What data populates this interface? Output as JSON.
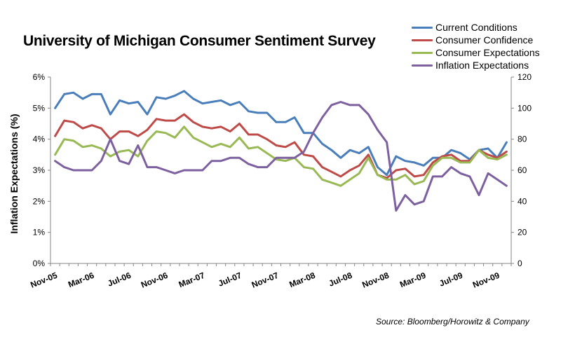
{
  "chart_data": {
    "type": "line",
    "title": "University of Michigan Consumer Sentiment Survey",
    "ylabel_left": "Inflation Expectations (%)",
    "ylabel_right": "",
    "source": "Source: Bloomberg/Horowitz & Company",
    "left_axis": {
      "min": 0,
      "max": 6,
      "ticks": [
        "0%",
        "1%",
        "2%",
        "3%",
        "4%",
        "5%",
        "6%"
      ]
    },
    "right_axis": {
      "min": 0,
      "max": 120,
      "ticks": [
        "0",
        "20",
        "40",
        "60",
        "80",
        "100",
        "120"
      ]
    },
    "x_tick_labels": [
      "Nov-05",
      "Mar-06",
      "Jul-06",
      "Nov-06",
      "Mar-07",
      "Jul-07",
      "Nov-07",
      "Mar-08",
      "Jul-08",
      "Nov-08",
      "Mar-09",
      "Jul-09",
      "Nov-09"
    ],
    "months": [
      "Nov-05",
      "Dec-05",
      "Jan-06",
      "Feb-06",
      "Mar-06",
      "Apr-06",
      "May-06",
      "Jun-06",
      "Jul-06",
      "Aug-06",
      "Sep-06",
      "Oct-06",
      "Nov-06",
      "Dec-06",
      "Jan-07",
      "Feb-07",
      "Mar-07",
      "Apr-07",
      "May-07",
      "Jun-07",
      "Jul-07",
      "Aug-07",
      "Sep-07",
      "Oct-07",
      "Nov-07",
      "Dec-07",
      "Jan-08",
      "Feb-08",
      "Mar-08",
      "Apr-08",
      "May-08",
      "Jun-08",
      "Jul-08",
      "Aug-08",
      "Sep-08",
      "Oct-08",
      "Nov-08",
      "Dec-08",
      "Jan-09",
      "Feb-09",
      "Mar-09",
      "Apr-09",
      "May-09",
      "Jun-09",
      "Jul-09",
      "Aug-09",
      "Sep-09",
      "Oct-09",
      "Nov-09",
      "Dec-09"
    ],
    "legend_position": "top-right",
    "series": [
      {
        "name": "Current Conditions",
        "axis": "right",
        "color": "#4a7ebb",
        "values": [
          100,
          109,
          110,
          106,
          109,
          109,
          96,
          105,
          103,
          104,
          96,
          107,
          106,
          108,
          111,
          106,
          103,
          104,
          105,
          102,
          104,
          98,
          97,
          97,
          91,
          91,
          94,
          84,
          84,
          77,
          73,
          68,
          73,
          71,
          75,
          62,
          57,
          69,
          66,
          65,
          63,
          68,
          68,
          73,
          71,
          67,
          73,
          74,
          68,
          78
        ]
      },
      {
        "name": "Consumer Confidence",
        "axis": "right",
        "color": "#be4b48",
        "values": [
          82,
          92,
          91,
          87,
          89,
          87,
          80,
          85,
          85,
          82,
          86,
          93,
          92,
          92,
          96,
          91,
          88,
          87,
          88,
          85,
          90,
          83,
          83,
          80,
          76,
          75,
          78,
          70,
          69,
          62,
          59,
          56,
          60,
          63,
          70,
          57,
          55,
          60,
          61,
          56,
          57,
          65,
          69,
          70,
          66,
          66,
          73,
          70,
          68,
          72
        ]
      },
      {
        "name": "Consumer Expectations",
        "axis": "right",
        "color": "#98b954",
        "values": [
          70,
          80,
          79,
          75,
          76,
          74,
          69,
          72,
          73,
          69,
          79,
          85,
          84,
          81,
          88,
          81,
          78,
          75,
          77,
          75,
          81,
          74,
          75,
          71,
          67,
          66,
          68,
          62,
          61,
          54,
          52,
          50,
          54,
          58,
          68,
          57,
          54,
          54,
          57,
          51,
          53,
          63,
          68,
          68,
          65,
          65,
          73,
          68,
          67,
          70
        ]
      },
      {
        "name": "Inflation Expectations",
        "axis": "left",
        "color": "#7d60a0",
        "values": [
          3.3,
          3.1,
          3.0,
          3.0,
          3.0,
          3.3,
          4.0,
          3.3,
          3.2,
          3.8,
          3.1,
          3.1,
          3.0,
          2.9,
          3.0,
          3.0,
          3.0,
          3.3,
          3.3,
          3.4,
          3.4,
          3.2,
          3.1,
          3.1,
          3.4,
          3.4,
          3.4,
          3.6,
          4.2,
          4.7,
          5.1,
          5.2,
          5.1,
          5.1,
          4.8,
          4.3,
          3.9,
          1.7,
          2.2,
          1.9,
          2.0,
          2.8,
          2.8,
          3.1,
          2.9,
          2.8,
          2.2,
          2.9,
          2.7,
          2.5
        ]
      }
    ]
  }
}
